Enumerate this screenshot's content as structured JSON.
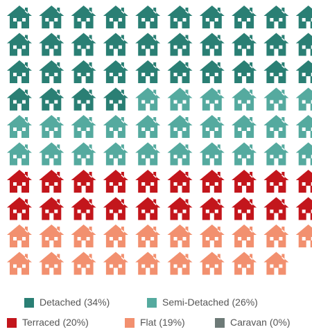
{
  "chart_data": {
    "type": "waffle",
    "categories": [
      "Detached",
      "Semi-Detached",
      "Terraced",
      "Flat",
      "Caravan"
    ],
    "values": [
      34,
      26,
      20,
      19,
      0
    ],
    "value_labels": [
      "(34%)",
      "(26%)",
      "(20%)",
      "(19%)",
      "(0%)"
    ],
    "colors": [
      "#2a7f74",
      "#55aa9f",
      "#c3161c",
      "#f2906f",
      "#6d7a77"
    ],
    "columns": 10
  }
}
